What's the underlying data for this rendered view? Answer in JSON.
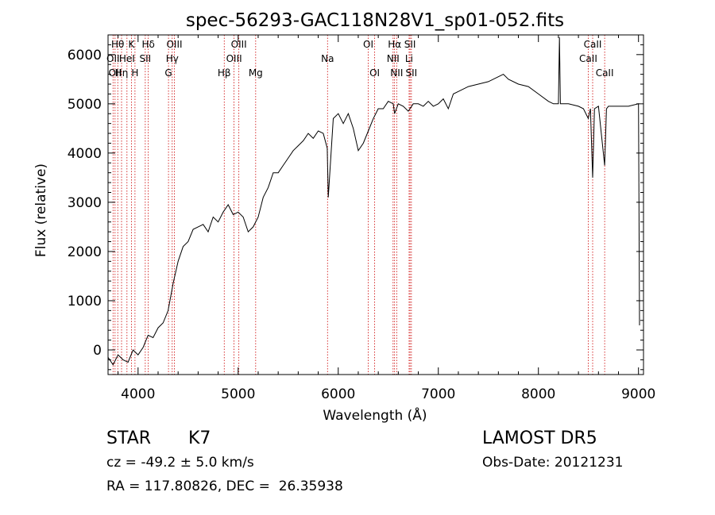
{
  "chart_data": {
    "type": "line",
    "title": "spec-56293-GAC118N28V1_sp01-052.fits",
    "xlabel": "Wavelength (Å)",
    "ylabel": "Flux (relative)",
    "xlim": [
      3700,
      9050
    ],
    "ylim": [
      -500,
      6400
    ],
    "x_ticks": [
      4000,
      5000,
      6000,
      7000,
      8000,
      9000
    ],
    "y_ticks": [
      0,
      1000,
      2000,
      3000,
      4000,
      5000,
      6000
    ],
    "grid": false,
    "series": [
      {
        "x": [
          3700,
          3750,
          3800,
          3850,
          3900,
          3950,
          4000,
          4050,
          4100,
          4150,
          4200,
          4250,
          4300,
          4350,
          4400,
          4450,
          4500,
          4550,
          4600,
          4650,
          4700,
          4750,
          4800,
          4850,
          4900,
          4950,
          5000,
          5050,
          5100,
          5150,
          5200,
          5250,
          5300,
          5350,
          5400,
          5450,
          5500,
          5550,
          5600,
          5650,
          5700,
          5750,
          5800,
          5850,
          5890,
          5900,
          5950,
          6000,
          6050,
          6100,
          6150,
          6200,
          6250,
          6300,
          6350,
          6400,
          6450,
          6500,
          6550,
          6563,
          6600,
          6650,
          6700,
          6750,
          6800,
          6850,
          6900,
          6950,
          7000,
          7050,
          7100,
          7150,
          7200,
          7300,
          7400,
          7500,
          7600,
          7650,
          7700,
          7800,
          7900,
          8000,
          8100,
          8150,
          8200,
          8210,
          8220,
          8250,
          8300,
          8400,
          8450,
          8498,
          8520,
          8542,
          8560,
          8600,
          8662,
          8680,
          8700,
          8800,
          8900,
          9000,
          9010
        ],
        "y": [
          -150,
          -300,
          -100,
          -200,
          -250,
          0,
          -100,
          50,
          300,
          250,
          450,
          550,
          800,
          1350,
          1800,
          2100,
          2200,
          2450,
          2500,
          2550,
          2400,
          2700,
          2600,
          2800,
          2950,
          2750,
          2800,
          2700,
          2400,
          2500,
          2700,
          3100,
          3300,
          3600,
          3600,
          3750,
          3900,
          4050,
          4150,
          4250,
          4400,
          4300,
          4450,
          4400,
          4100,
          3100,
          4700,
          4800,
          4600,
          4800,
          4500,
          4050,
          4200,
          4450,
          4700,
          4900,
          4900,
          5050,
          5000,
          4800,
          5000,
          4950,
          4850,
          5000,
          5000,
          4950,
          5050,
          4950,
          5000,
          5100,
          4900,
          5200,
          5250,
          5350,
          5400,
          5450,
          5550,
          5600,
          5500,
          5400,
          5350,
          5200,
          5050,
          5000,
          5000,
          6350,
          5000,
          5000,
          5000,
          4950,
          4900,
          4700,
          4900,
          3500,
          4900,
          4950,
          3750,
          4900,
          4950,
          4950,
          4950,
          5000,
          500
        ]
      }
    ],
    "lines": [
      {
        "x": 3750,
        "label": "OII",
        "row": 1
      },
      {
        "x": 3770,
        "label": "OII",
        "row": 2
      },
      {
        "x": 3797,
        "label": "Hθ",
        "row": 0
      },
      {
        "x": 3835,
        "label": "Hη",
        "row": 2
      },
      {
        "x": 3889,
        "label": "HeI",
        "row": 1
      },
      {
        "x": 3934,
        "label": "K",
        "row": 0
      },
      {
        "x": 3969,
        "label": "H",
        "row": 2
      },
      {
        "x": 4072,
        "label": "SII",
        "row": 1
      },
      {
        "x": 4102,
        "label": "Hδ",
        "row": 0
      },
      {
        "x": 4304,
        "label": "G",
        "row": 2
      },
      {
        "x": 4341,
        "label": "Hγ",
        "row": 1
      },
      {
        "x": 4363,
        "label": "OIII",
        "row": 0
      },
      {
        "x": 4861,
        "label": "Hβ",
        "row": 2
      },
      {
        "x": 4959,
        "label": "OIII",
        "row": 1
      },
      {
        "x": 5007,
        "label": "OIII",
        "row": 0
      },
      {
        "x": 5175,
        "label": "Mg",
        "row": 2
      },
      {
        "x": 5893,
        "label": "Na",
        "row": 1
      },
      {
        "x": 6300,
        "label": "OI",
        "row": 0
      },
      {
        "x": 6364,
        "label": "OI",
        "row": 2
      },
      {
        "x": 6548,
        "label": "NII",
        "row": 1
      },
      {
        "x": 6563,
        "label": "Hα",
        "row": 0
      },
      {
        "x": 6584,
        "label": "NII",
        "row": 2
      },
      {
        "x": 6708,
        "label": "Li",
        "row": 1
      },
      {
        "x": 6717,
        "label": "SII",
        "row": 0
      },
      {
        "x": 6731,
        "label": "SII",
        "row": 2
      },
      {
        "x": 8498,
        "label": "CaII",
        "row": 1
      },
      {
        "x": 8542,
        "label": "CaII",
        "row": 0
      },
      {
        "x": 8662,
        "label": "CaII",
        "row": 2
      }
    ]
  },
  "info": {
    "class": "STAR",
    "subclass": "K7",
    "survey": "LAMOST DR5",
    "cz": "cz = -49.2 ± 5.0 km/s",
    "obs_date": "Obs-Date: 20121231",
    "coords": "RA = 117.80826, DEC =  26.35938"
  },
  "colors": {
    "line_marker": "#cc0000",
    "spectrum": "#000000"
  }
}
